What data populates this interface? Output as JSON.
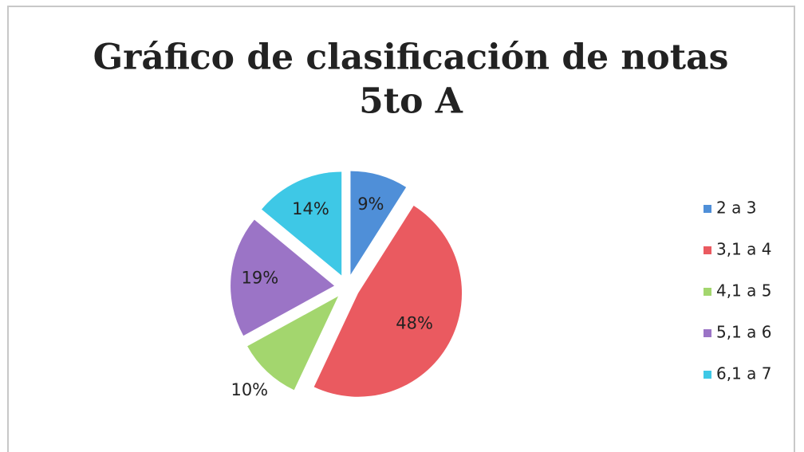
{
  "chart_data": {
    "type": "pie",
    "title": [
      "Gráfico de clasificación de notas",
      "5to A"
    ],
    "categories": [
      "2 a 3",
      "3,1 a 4",
      "4,1 a 5",
      "5,1 a 6",
      "6,1 a 7"
    ],
    "values": [
      9,
      48,
      10,
      19,
      14
    ],
    "value_labels": [
      "9%",
      "48%",
      "10%",
      "19%",
      "14%"
    ],
    "colors": [
      "#4f8fd8",
      "#ea5a60",
      "#a3d66e",
      "#9b74c6",
      "#3ec8e6"
    ],
    "legend": "right"
  }
}
